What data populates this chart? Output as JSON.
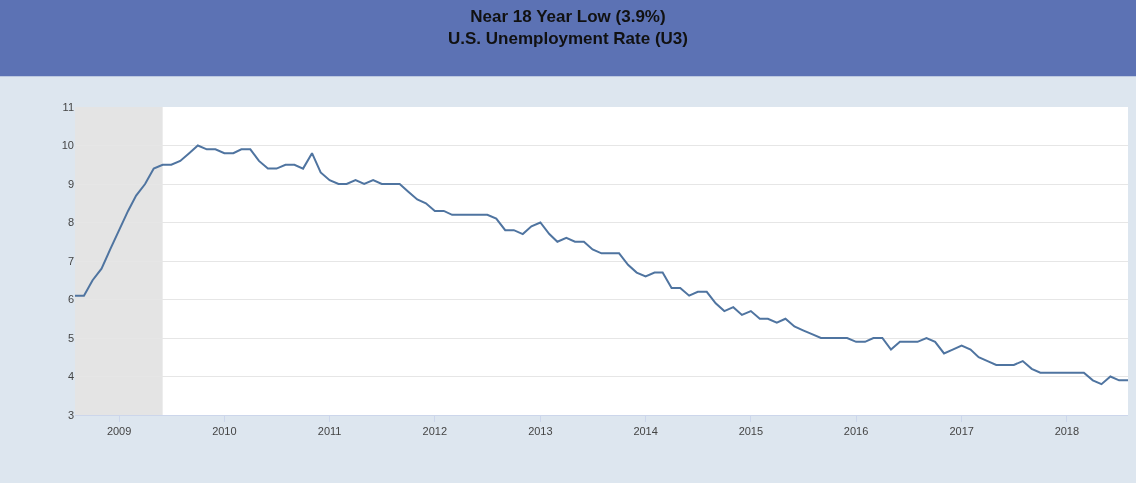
{
  "chart_data": {
    "type": "line",
    "title": "Near 18 Year Low (3.9%)",
    "subtitle": "U.S. Unemployment Rate (U3)",
    "x": [
      "2008-08",
      "2008-09",
      "2008-10",
      "2008-11",
      "2008-12",
      "2009-01",
      "2009-02",
      "2009-03",
      "2009-04",
      "2009-05",
      "2009-06",
      "2009-07",
      "2009-08",
      "2009-09",
      "2009-10",
      "2009-11",
      "2009-12",
      "2010-01",
      "2010-02",
      "2010-03",
      "2010-04",
      "2010-05",
      "2010-06",
      "2010-07",
      "2010-08",
      "2010-09",
      "2010-10",
      "2010-11",
      "2010-12",
      "2011-01",
      "2011-02",
      "2011-03",
      "2011-04",
      "2011-05",
      "2011-06",
      "2011-07",
      "2011-08",
      "2011-09",
      "2011-10",
      "2011-11",
      "2011-12",
      "2012-01",
      "2012-02",
      "2012-03",
      "2012-04",
      "2012-05",
      "2012-06",
      "2012-07",
      "2012-08",
      "2012-09",
      "2012-10",
      "2012-11",
      "2012-12",
      "2013-01",
      "2013-02",
      "2013-03",
      "2013-04",
      "2013-05",
      "2013-06",
      "2013-07",
      "2013-08",
      "2013-09",
      "2013-10",
      "2013-11",
      "2013-12",
      "2014-01",
      "2014-02",
      "2014-03",
      "2014-04",
      "2014-05",
      "2014-06",
      "2014-07",
      "2014-08",
      "2014-09",
      "2014-10",
      "2014-11",
      "2014-12",
      "2015-01",
      "2015-02",
      "2015-03",
      "2015-04",
      "2015-05",
      "2015-06",
      "2015-07",
      "2015-08",
      "2015-09",
      "2015-10",
      "2015-11",
      "2015-12",
      "2016-01",
      "2016-02",
      "2016-03",
      "2016-04",
      "2016-05",
      "2016-06",
      "2016-07",
      "2016-08",
      "2016-09",
      "2016-10",
      "2016-11",
      "2016-12",
      "2017-01",
      "2017-02",
      "2017-03",
      "2017-04",
      "2017-05",
      "2017-06",
      "2017-07",
      "2017-08",
      "2017-09",
      "2017-10",
      "2017-11",
      "2017-12",
      "2018-01",
      "2018-02",
      "2018-03",
      "2018-04",
      "2018-05",
      "2018-06",
      "2018-07",
      "2018-08"
    ],
    "series": [
      {
        "color": "#4f74a0",
        "values": [
          6.1,
          6.1,
          6.5,
          6.8,
          7.3,
          7.8,
          8.3,
          8.7,
          9.0,
          9.4,
          9.5,
          9.5,
          9.6,
          9.8,
          10.0,
          9.9,
          9.9,
          9.8,
          9.8,
          9.9,
          9.9,
          9.6,
          9.4,
          9.4,
          9.5,
          9.5,
          9.4,
          9.8,
          9.3,
          9.1,
          9.0,
          9.0,
          9.1,
          9.0,
          9.1,
          9.0,
          9.0,
          9.0,
          8.8,
          8.6,
          8.5,
          8.3,
          8.3,
          8.2,
          8.2,
          8.2,
          8.2,
          8.2,
          8.1,
          7.8,
          7.8,
          7.7,
          7.9,
          8.0,
          7.7,
          7.5,
          7.6,
          7.5,
          7.5,
          7.3,
          7.2,
          7.2,
          7.2,
          6.9,
          6.7,
          6.6,
          6.7,
          6.7,
          6.3,
          6.3,
          6.1,
          6.2,
          6.2,
          5.9,
          5.7,
          5.8,
          5.6,
          5.7,
          5.5,
          5.5,
          5.4,
          5.5,
          5.3,
          5.2,
          5.1,
          5.0,
          5.0,
          5.0,
          5.0,
          4.9,
          4.9,
          5.0,
          5.0,
          4.7,
          4.9,
          4.9,
          4.9,
          5.0,
          4.9,
          4.6,
          4.7,
          4.8,
          4.7,
          4.5,
          4.4,
          4.3,
          4.3,
          4.3,
          4.4,
          4.2,
          4.1,
          4.1,
          4.1,
          4.1,
          4.1,
          4.1,
          3.9,
          3.8,
          4.0,
          3.9,
          3.9
        ]
      }
    ],
    "xlim": [
      "2008-08-01",
      "2018-08-01"
    ],
    "xticks": [
      {
        "value": "2009-01-01",
        "label": "2009"
      },
      {
        "value": "2010-01-01",
        "label": "2010"
      },
      {
        "value": "2011-01-01",
        "label": "2011"
      },
      {
        "value": "2012-01-01",
        "label": "2012"
      },
      {
        "value": "2013-01-01",
        "label": "2013"
      },
      {
        "value": "2014-01-01",
        "label": "2014"
      },
      {
        "value": "2015-01-01",
        "label": "2015"
      },
      {
        "value": "2016-01-01",
        "label": "2016"
      },
      {
        "value": "2017-01-01",
        "label": "2017"
      },
      {
        "value": "2018-01-01",
        "label": "2018"
      }
    ],
    "ylim": [
      3,
      11
    ],
    "yticks": [
      3,
      4,
      5,
      6,
      7,
      8,
      9,
      10,
      11
    ],
    "bands": [
      {
        "axis": "x",
        "from": "2008-08-01",
        "to": "2009-06-01",
        "color": "#e4e4e4"
      }
    ],
    "grid": "y",
    "marker": "none",
    "line_style": "solid"
  }
}
